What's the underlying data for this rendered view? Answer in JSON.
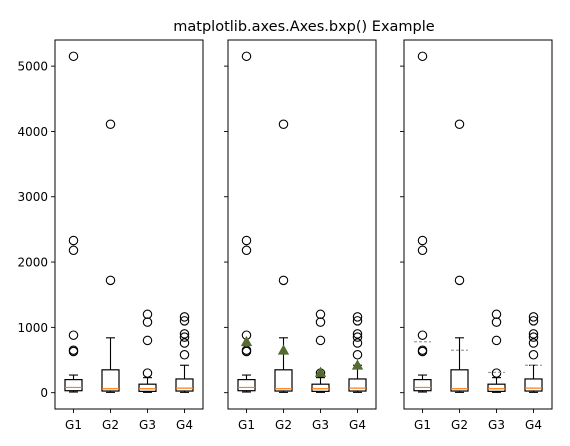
{
  "figure": {
    "title": "matplotlib.axes.Axes.bxp() Example"
  },
  "colors": {
    "box": "#000000",
    "median": "#ff7f0e",
    "mean_marker": "#556b2f",
    "mean_line": "#9c9c9c",
    "flier": "#000000",
    "background": "#ffffff"
  },
  "chart_data": [
    {
      "type": "boxplot",
      "panel": "left",
      "show_mean": "none",
      "ylim": [
        -250,
        5400
      ],
      "yticks": [
        0,
        1000,
        2000,
        3000,
        4000,
        5000
      ],
      "yticklabels": [
        "0",
        "1000",
        "2000",
        "3000",
        "4000",
        "5000"
      ],
      "categories": [
        "G1",
        "G2",
        "G3",
        "G4"
      ],
      "boxes": [
        {
          "label": "G1",
          "whislo": 10,
          "q1": 30,
          "med": 80,
          "q3": 200,
          "whishi": 270,
          "mean": 780,
          "fliers": [
            5150,
            2330,
            2180,
            880,
            650,
            630
          ]
        },
        {
          "label": "G2",
          "whislo": 5,
          "q1": 25,
          "med": 60,
          "q3": 350,
          "whishi": 840,
          "mean": 650,
          "fliers": [
            4110,
            1720
          ]
        },
        {
          "label": "G3",
          "whislo": 5,
          "q1": 20,
          "med": 60,
          "q3": 130,
          "whishi": 230,
          "mean": 310,
          "fliers": [
            1200,
            1080,
            800,
            300
          ]
        },
        {
          "label": "G4",
          "whislo": 5,
          "q1": 25,
          "med": 70,
          "q3": 210,
          "whishi": 420,
          "mean": 420,
          "fliers": [
            1160,
            1100,
            900,
            850,
            760,
            580
          ]
        }
      ]
    },
    {
      "type": "boxplot",
      "panel": "middle",
      "show_mean": "marker",
      "ylim": [
        -250,
        5400
      ],
      "yticks": [
        0,
        1000,
        2000,
        3000,
        4000,
        5000
      ],
      "categories": [
        "G1",
        "G2",
        "G3",
        "G4"
      ],
      "boxes": [
        {
          "label": "G1",
          "whislo": 10,
          "q1": 30,
          "med": 80,
          "q3": 200,
          "whishi": 270,
          "mean": 780,
          "fliers": [
            5150,
            2330,
            2180,
            880,
            650,
            630
          ]
        },
        {
          "label": "G2",
          "whislo": 5,
          "q1": 25,
          "med": 60,
          "q3": 350,
          "whishi": 840,
          "mean": 650,
          "fliers": [
            4110,
            1720
          ]
        },
        {
          "label": "G3",
          "whislo": 5,
          "q1": 20,
          "med": 60,
          "q3": 130,
          "whishi": 230,
          "mean": 310,
          "fliers": [
            1200,
            1080,
            800,
            300
          ]
        },
        {
          "label": "G4",
          "whislo": 5,
          "q1": 25,
          "med": 70,
          "q3": 210,
          "whishi": 420,
          "mean": 420,
          "fliers": [
            1160,
            1100,
            900,
            850,
            760,
            580
          ]
        }
      ]
    },
    {
      "type": "boxplot",
      "panel": "right",
      "show_mean": "line",
      "ylim": [
        -250,
        5400
      ],
      "yticks": [
        0,
        1000,
        2000,
        3000,
        4000,
        5000
      ],
      "categories": [
        "G1",
        "G2",
        "G3",
        "G4"
      ],
      "boxes": [
        {
          "label": "G1",
          "whislo": 10,
          "q1": 30,
          "med": 80,
          "q3": 200,
          "whishi": 270,
          "mean": 780,
          "fliers": [
            5150,
            2330,
            2180,
            880,
            650,
            630
          ]
        },
        {
          "label": "G2",
          "whislo": 5,
          "q1": 25,
          "med": 60,
          "q3": 350,
          "whishi": 840,
          "mean": 650,
          "fliers": [
            4110,
            1720
          ]
        },
        {
          "label": "G3",
          "whislo": 5,
          "q1": 20,
          "med": 60,
          "q3": 130,
          "whishi": 230,
          "mean": 310,
          "fliers": [
            1200,
            1080,
            800,
            300
          ]
        },
        {
          "label": "G4",
          "whislo": 5,
          "q1": 25,
          "med": 70,
          "q3": 210,
          "whishi": 420,
          "mean": 420,
          "fliers": [
            1160,
            1100,
            900,
            850,
            760,
            580
          ]
        }
      ]
    }
  ]
}
